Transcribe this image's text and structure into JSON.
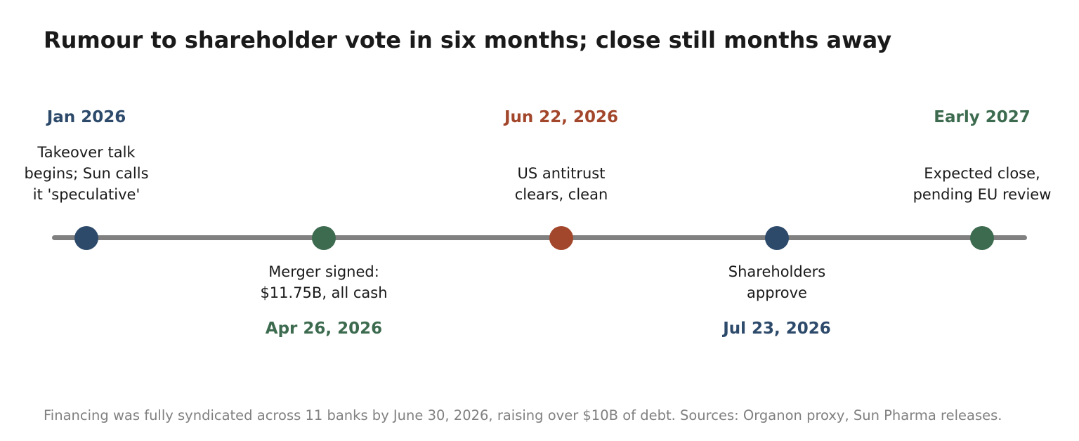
{
  "title": "Rumour to shareholder vote in six months; close still months away",
  "colors": {
    "navy": "#2d4a6b",
    "green": "#3d6b4f",
    "rust": "#a3472c",
    "axis": "#808080"
  },
  "events": [
    {
      "date": "Jan 2026",
      "desc": "Takeover talk\nbegins; Sun calls\nit 'speculative'",
      "color": "#2d4a6b",
      "side": "above"
    },
    {
      "date": "Apr 26, 2026",
      "desc": "Merger signed:\n$11.75B, all cash",
      "color": "#3d6b4f",
      "side": "below"
    },
    {
      "date": "Jun 22, 2026",
      "desc": "US antitrust\nclears, clean",
      "color": "#a3472c",
      "side": "above"
    },
    {
      "date": "Jul 23, 2026",
      "desc": "Shareholders\napprove",
      "color": "#2d4a6b",
      "side": "below"
    },
    {
      "date": "Early 2027",
      "desc": "Expected close,\npending EU review",
      "color": "#3d6b4f",
      "side": "above"
    }
  ],
  "footer": "Financing was fully syndicated across 11 banks by June 30, 2026, raising over $10B of debt.  Sources: Organon proxy, Sun Pharma releases."
}
